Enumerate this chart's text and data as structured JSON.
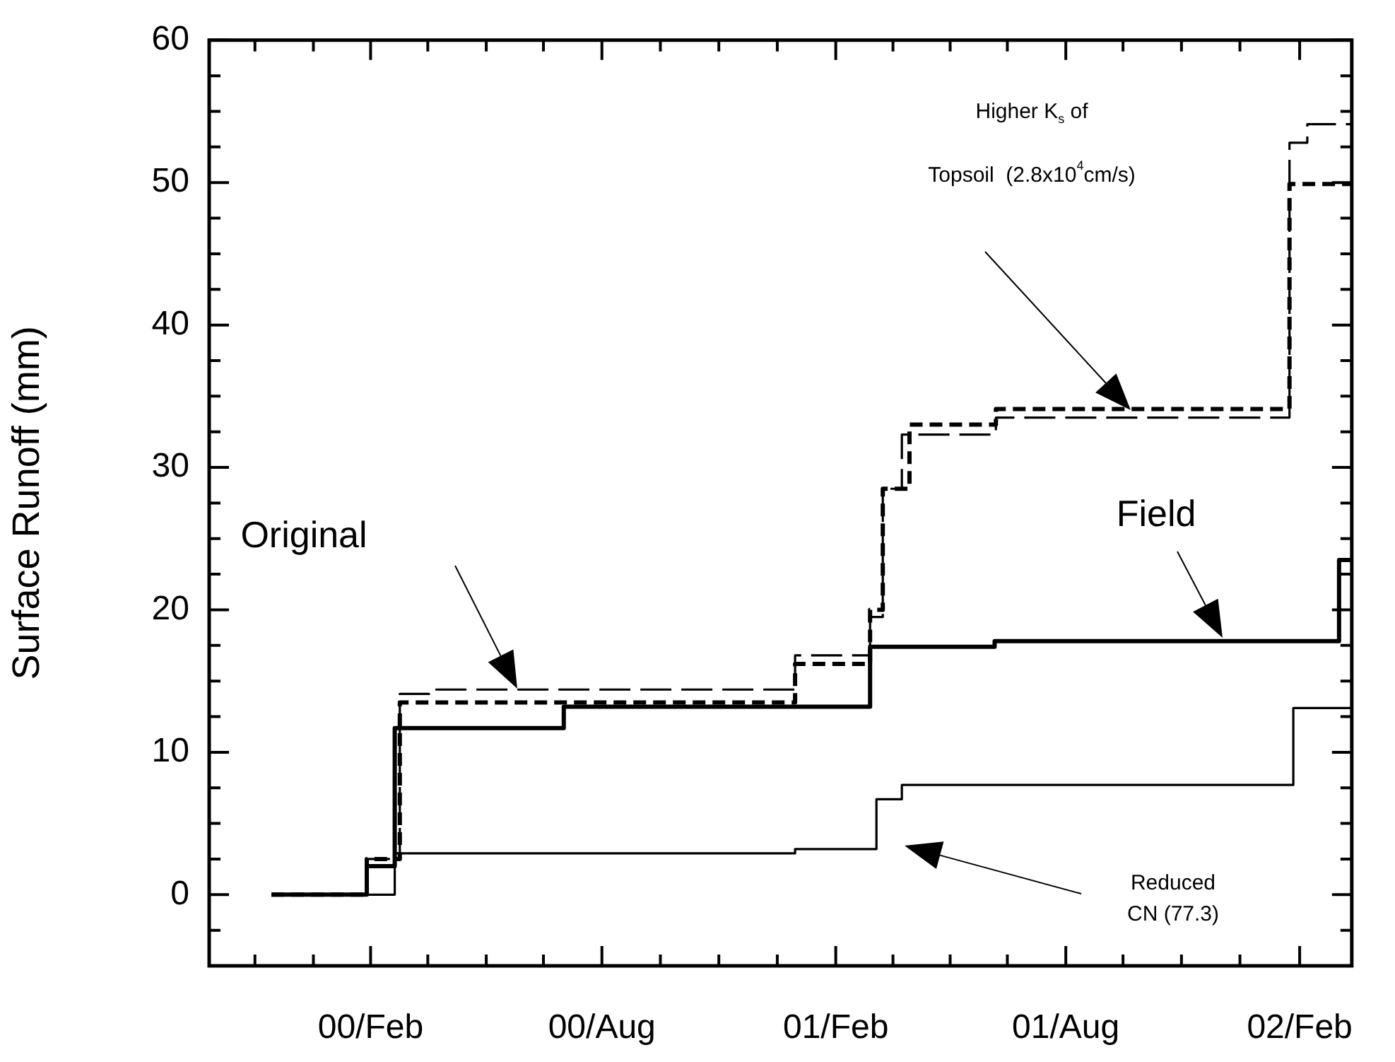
{
  "chart_data": {
    "type": "step",
    "ylabel": "Surface Runoff (mm)",
    "xlim": [
      "1999-09-27",
      "2002-03-14"
    ],
    "xticks": [
      {
        "value": "1999-11-02",
        "label": null
      },
      {
        "value": "1999-12-18",
        "label": null
      },
      {
        "value": "2000-02-01",
        "label": "00/Feb"
      },
      {
        "value": "2000-03-17",
        "label": null
      },
      {
        "value": "2000-05-02",
        "label": null
      },
      {
        "value": "2000-06-16",
        "label": null
      },
      {
        "value": "2000-08-01",
        "label": "00/Aug"
      },
      {
        "value": "2000-09-16",
        "label": null
      },
      {
        "value": "2000-11-01",
        "label": null
      },
      {
        "value": "2000-12-17",
        "label": null
      },
      {
        "value": "2001-02-01",
        "label": "01/Feb"
      },
      {
        "value": "2001-03-18",
        "label": null
      },
      {
        "value": "2001-05-02",
        "label": null
      },
      {
        "value": "2001-06-16",
        "label": null
      },
      {
        "value": "2001-08-01",
        "label": "01/Aug"
      },
      {
        "value": "2001-09-15",
        "label": null
      },
      {
        "value": "2001-10-31",
        "label": null
      },
      {
        "value": "2001-12-16",
        "label": null
      },
      {
        "value": "2002-02-01",
        "label": "02/Feb"
      }
    ],
    "ylim": [
      -5,
      60
    ],
    "yticks": [
      {
        "value": -2.5,
        "label": null
      },
      0,
      {
        "value": 2.5,
        "label": null
      },
      {
        "value": 5,
        "label": null
      },
      {
        "value": 7.5,
        "label": null
      },
      10,
      {
        "value": 12.5,
        "label": null
      },
      {
        "value": 15,
        "label": null
      },
      {
        "value": 17.5,
        "label": null
      },
      20,
      {
        "value": 22.5,
        "label": null
      },
      {
        "value": 25,
        "label": null
      },
      {
        "value": 27.5,
        "label": null
      },
      30,
      {
        "value": 32.5,
        "label": null
      },
      {
        "value": 35,
        "label": null
      },
      {
        "value": 37.5,
        "label": null
      },
      40,
      {
        "value": 42.5,
        "label": null
      },
      {
        "value": 45,
        "label": null
      },
      {
        "value": 47.5,
        "label": null
      },
      50,
      {
        "value": 52.5,
        "label": null
      },
      {
        "value": 55,
        "label": null
      },
      {
        "value": 57.5,
        "label": null
      },
      60
    ],
    "marker": "none",
    "series": [
      {
        "color": "#000000",
        "line_style": "solid",
        "x": [
          "1999-11-15",
          "2000-01-29",
          "2000-02-20",
          "2000-07-02",
          "2001-02-28",
          "2001-06-06",
          "2002-03-04",
          "2002-03-14"
        ],
        "values": [
          0,
          2.0,
          11.7,
          13.2,
          17.4,
          17.8,
          23.5,
          23.5
        ]
      },
      {
        "color": "#000000",
        "line_style": "dashed",
        "x": [
          "1999-11-15",
          "2000-01-29",
          "2000-02-24",
          "2000-03-18",
          "2000-12-31",
          "2001-02-28",
          "2001-03-10",
          "2001-03-25",
          "2001-06-07",
          "2002-01-24",
          "2002-02-07",
          "2002-03-14"
        ],
        "values": [
          0,
          2.5,
          14.1,
          14.4,
          16.8,
          19.5,
          28.5,
          32.3,
          33.5,
          52.8,
          54.1,
          54.1
        ]
      },
      {
        "color": "#000000",
        "line_style": "dashed",
        "x": [
          "1999-11-15",
          "2000-01-29",
          "2000-02-24",
          "2000-12-31",
          "2001-02-28",
          "2001-03-10",
          "2001-03-31",
          "2001-06-07",
          "2002-01-24",
          "2002-03-14"
        ],
        "values": [
          0,
          2.5,
          13.5,
          16.2,
          20,
          28.5,
          33.0,
          34.1,
          49.9,
          49.9
        ]
      },
      {
        "color": "#000000",
        "line_style": "solid",
        "x": [
          "1999-11-15",
          "2000-02-20",
          "2000-12-31",
          "2001-03-05",
          "2001-03-25",
          "2002-01-27",
          "2002-03-14"
        ],
        "values": [
          0,
          2.9,
          3.2,
          6.7,
          7.7,
          13.1,
          13.1
        ]
      }
    ],
    "annotations": [
      "Original",
      "Field",
      "Higher K$_{s}$ of\nTopsoil  (2.8x10$^{4}$cm/s)",
      "Reduced\nCN (77.3)"
    ]
  }
}
